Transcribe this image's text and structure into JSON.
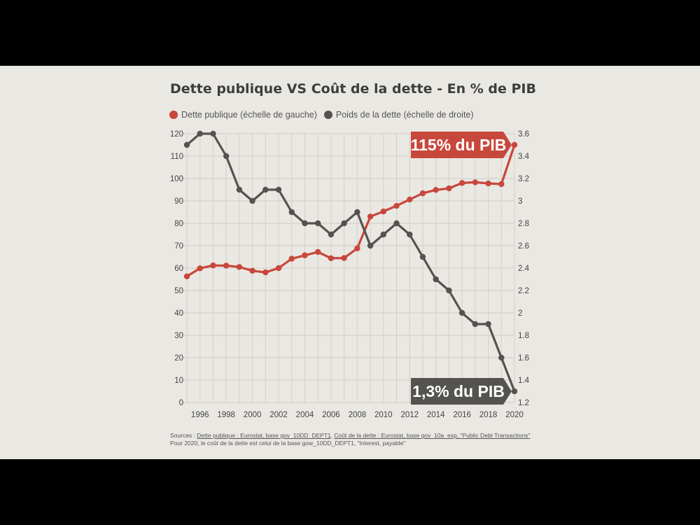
{
  "chart_data": {
    "type": "line",
    "title": "Dette publique VS Coût de la dette - En % de PIB",
    "x": [
      1995,
      1996,
      1997,
      1998,
      1999,
      2000,
      2001,
      2002,
      2003,
      2004,
      2005,
      2006,
      2007,
      2008,
      2009,
      2010,
      2011,
      2012,
      2013,
      2014,
      2015,
      2016,
      2017,
      2018,
      2019,
      2020
    ],
    "xticks": [
      1996,
      1998,
      2000,
      2002,
      2004,
      2006,
      2008,
      2010,
      2012,
      2014,
      2016,
      2018,
      2020
    ],
    "y_left_ticks": [
      0,
      10,
      20,
      30,
      40,
      50,
      60,
      70,
      80,
      90,
      100,
      110,
      120
    ],
    "y_right_ticks": [
      "1.2",
      "1.4",
      "1.6",
      "1.8",
      "2",
      "2.2",
      "2.4",
      "2.6",
      "2.8",
      "3",
      "3.2",
      "3.4",
      "3.6"
    ],
    "ylim_left": [
      0,
      120
    ],
    "ylim_right": [
      1.2,
      3.6
    ],
    "grid": true,
    "legend_position": "top-left",
    "series": [
      {
        "name": "Dette publique (échelle de gauche)",
        "axis": "left",
        "color": "#c8473c",
        "values": [
          56.3,
          59.9,
          61.2,
          61.1,
          60.5,
          58.8,
          58.1,
          60.0,
          64.2,
          65.7,
          67.2,
          64.4,
          64.5,
          68.8,
          83.0,
          85.3,
          87.8,
          90.6,
          93.4,
          94.9,
          95.6,
          98.0,
          98.3,
          97.8,
          97.5,
          115.0
        ]
      },
      {
        "name": "Poids de la dette (échelle de droite)",
        "axis": "right",
        "color": "#555350",
        "values": [
          3.5,
          3.6,
          3.6,
          3.4,
          3.1,
          3.0,
          3.1,
          3.1,
          2.9,
          2.8,
          2.8,
          2.7,
          2.8,
          2.9,
          2.6,
          2.7,
          2.8,
          2.7,
          2.5,
          2.3,
          2.2,
          2.0,
          1.9,
          1.9,
          1.6,
          1.3
        ]
      }
    ],
    "annotations": [
      {
        "text": "115% du PIB",
        "series": 0,
        "color": "#c8473c"
      },
      {
        "text": "1,3% du PIB",
        "series": 1,
        "color": "#555350"
      }
    ]
  },
  "sources": {
    "prefix": "Sources : ",
    "link1": "Dette publique : Eurostat, base gov_10DD_DEPT1",
    "sep": ", ",
    "link2": "Coût de la dette : Eurostat, base gov_10a_exp, \"Public Debt Transactions\"",
    "note": "Pour 2020, le coût de la dette est celui de la base gow_10DD_DEPT1, \"Interest, payable\""
  }
}
